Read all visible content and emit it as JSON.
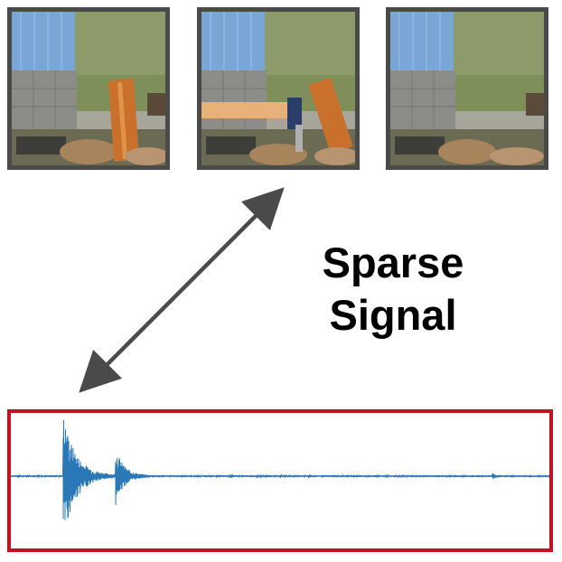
{
  "headline": {
    "line1": "Sparse",
    "line2": "Signal"
  },
  "colors": {
    "frame_border": "#4a4a4a",
    "waveform_border": "#c1121f",
    "waveform": "#2b78b7",
    "arrow": "#4a4a4a"
  },
  "frames": [
    {
      "name": "video-frame-before",
      "axe_visible": false
    },
    {
      "name": "video-frame-impact",
      "axe_visible": true
    },
    {
      "name": "video-frame-after",
      "axe_visible": false
    }
  ]
}
